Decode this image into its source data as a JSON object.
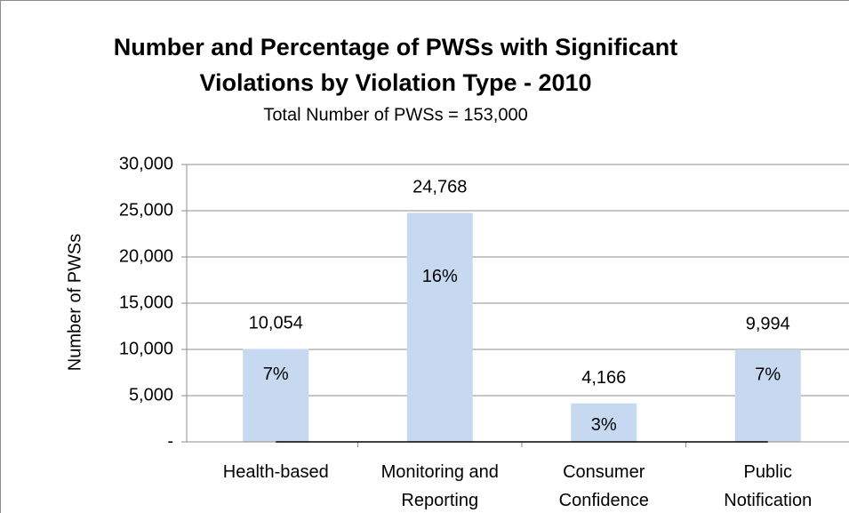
{
  "chart_data": {
    "type": "bar",
    "title": [
      "Number and Percentage of PWSs with Significant",
      "Violations  by Violation Type - 2010"
    ],
    "subtitle": "Total Number of PWSs = 153,000",
    "y_label": "Number of PWSs",
    "categories": [
      [
        "Health-based"
      ],
      [
        "Monitoring and",
        "Reporting"
      ],
      [
        "Consumer",
        "Confidence"
      ],
      [
        "Public",
        "Notification"
      ]
    ],
    "values": [
      10054,
      24768,
      4166,
      9994
    ],
    "value_labels": [
      "10,054",
      "24,768",
      "4,166",
      "9,994"
    ],
    "percentages": {
      "values": [
        7,
        16,
        3,
        7
      ],
      "value_labels": [
        "7%",
        "16%",
        "3%",
        "7%"
      ]
    },
    "color": "#c6d9f1",
    "ylim": [
      0,
      30000
    ],
    "yticks": [
      {
        "value": 0,
        "label": "-"
      },
      {
        "value": 5000,
        "label": "5,000"
      },
      {
        "value": 10000,
        "label": "10,000"
      },
      {
        "value": 15000,
        "label": "15,000"
      },
      {
        "value": 20000,
        "label": "20,000"
      },
      {
        "value": 25000,
        "label": "25,000"
      },
      {
        "value": 30000,
        "label": "30,000"
      }
    ],
    "grid": true
  }
}
